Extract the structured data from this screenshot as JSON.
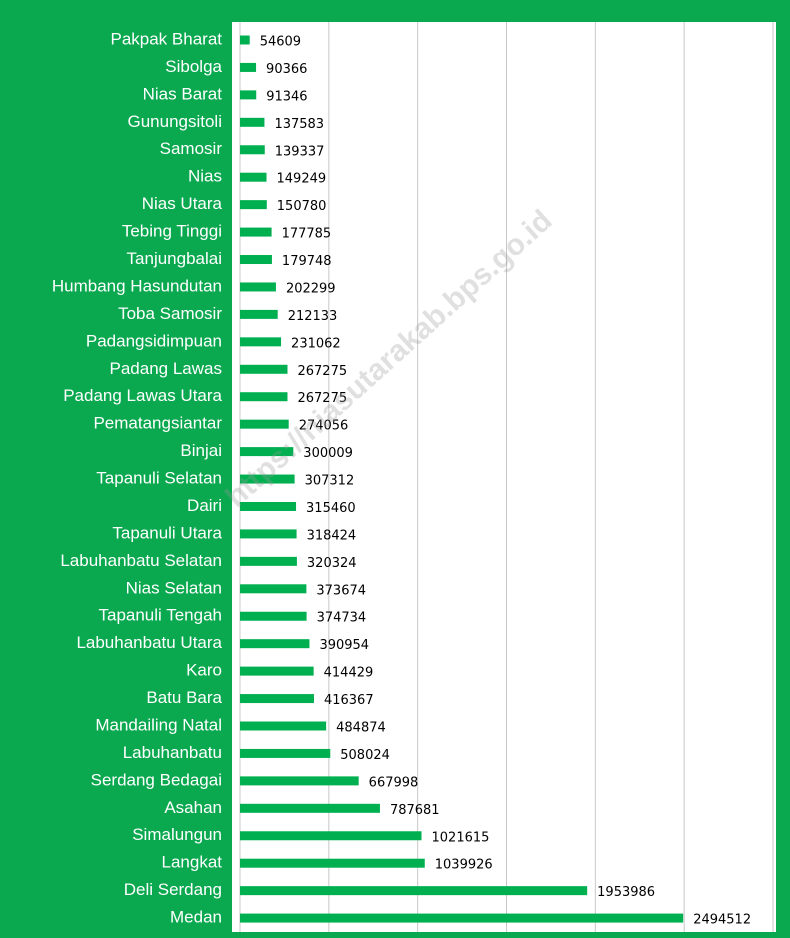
{
  "chart_data": {
    "type": "bar",
    "orientation": "horizontal",
    "watermark": "https://niasutarakab.bps.go.id",
    "categories": [
      "Pakpak Bharat",
      "Sibolga",
      "Nias Barat",
      "Gunungsitoli",
      "Samosir",
      "Nias",
      "Nias Utara",
      "Tebing Tinggi",
      "Tanjungbalai",
      "Humbang Hasundutan",
      "Toba Samosir",
      "Padangsidimpuan",
      "Padang Lawas",
      "Padang Lawas Utara",
      "Pematangsiantar",
      "Binjai",
      "Tapanuli Selatan",
      "Dairi",
      "Tapanuli Utara",
      "Labuhanbatu Selatan",
      "Nias Selatan",
      "Tapanuli Tengah",
      "Labuhanbatu Utara",
      "Karo",
      "Batu Bara",
      "Mandailing Natal",
      "Labuhanbatu",
      "Serdang Bedagai",
      "Asahan",
      "Simalungun",
      "Langkat",
      "Deli Serdang",
      "Medan"
    ],
    "values": [
      54609,
      90366,
      91346,
      137583,
      139337,
      149249,
      150780,
      177785,
      179748,
      202299,
      212133,
      231062,
      267275,
      267275,
      274056,
      300009,
      307312,
      315460,
      318424,
      320324,
      373674,
      374734,
      390954,
      414429,
      416367,
      484874,
      508024,
      667998,
      787681,
      1021615,
      1039926,
      1953986,
      2494512
    ],
    "color": "#00b050",
    "xlim": [
      0,
      3000000
    ],
    "xticks": [
      0,
      500000,
      1000000,
      1500000,
      2000000,
      2500000,
      3000000
    ],
    "grid": true
  }
}
